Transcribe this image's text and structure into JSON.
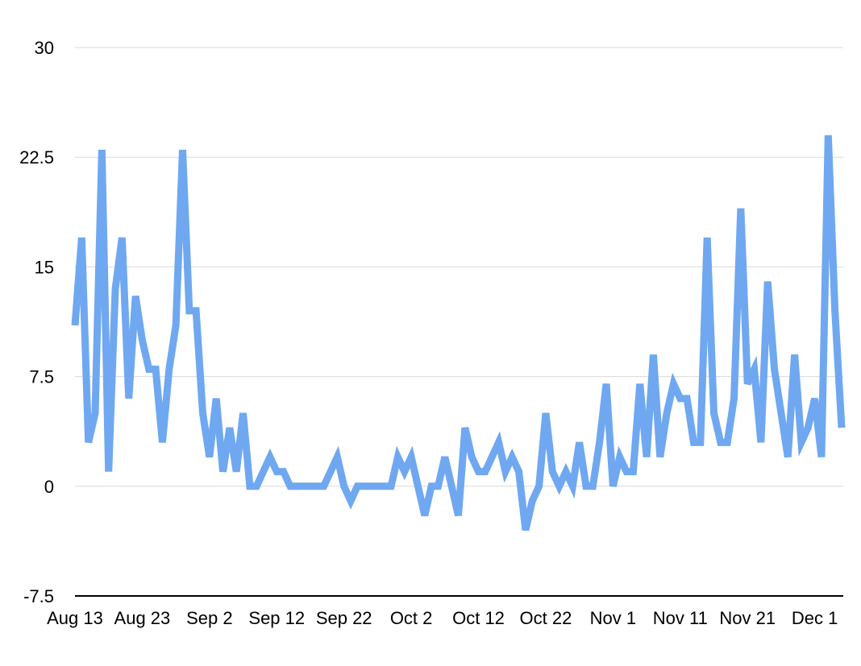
{
  "chart_data": {
    "type": "line",
    "title": "",
    "xlabel": "",
    "ylabel": "",
    "ylim": [
      -7.5,
      30
    ],
    "y_ticks": [
      "-7.5",
      "0",
      "7.5",
      "15",
      "22.5",
      "30"
    ],
    "y_tick_values": [
      -7.5,
      0,
      7.5,
      15,
      22.5,
      30
    ],
    "grid": true,
    "legend": "none",
    "x_range": [
      "Aug 13",
      "Dec 5"
    ],
    "x_tick_labels": [
      {
        "label": "Aug 13",
        "date": "Aug 13"
      },
      {
        "label": "Aug 23",
        "date": "Aug 23"
      },
      {
        "label": "Sep 2",
        "date": "Sep 2"
      },
      {
        "label": "Sep 12",
        "date": "Sep 12"
      },
      {
        "label": "Sep 22",
        "date": "Sep 22"
      },
      {
        "label": "Oct 2",
        "date": "Oct 2"
      },
      {
        "label": "Oct 12",
        "date": "Oct 12"
      },
      {
        "label": "Oct 22",
        "date": "Oct 22"
      },
      {
        "label": "Nov 1",
        "date": "Nov 1"
      },
      {
        "label": "Nov 11",
        "date": "Nov 11"
      },
      {
        "label": "Nov 21",
        "date": "Nov 21"
      },
      {
        "label": "Dec 1",
        "date": "Dec 1"
      }
    ],
    "series": [
      {
        "color": "#6fa8f0",
        "x": [
          "Aug 13",
          "Aug 14",
          "Aug 15",
          "Aug 16",
          "Aug 17",
          "Aug 18",
          "Aug 19",
          "Aug 20",
          "Aug 21",
          "Aug 22",
          "Aug 23",
          "Aug 24",
          "Aug 25",
          "Aug 26",
          "Aug 27",
          "Aug 28",
          "Aug 29",
          "Aug 30",
          "Aug 31",
          "Sep 1",
          "Sep 2",
          "Sep 3",
          "Sep 4",
          "Sep 5",
          "Sep 6",
          "Sep 7",
          "Sep 8",
          "Sep 9",
          "Sep 10",
          "Sep 11",
          "Sep 12",
          "Sep 13",
          "Sep 14",
          "Sep 15",
          "Sep 16",
          "Sep 17",
          "Sep 18",
          "Sep 19",
          "Sep 20",
          "Sep 21",
          "Sep 22",
          "Sep 23",
          "Sep 24",
          "Sep 25",
          "Sep 26",
          "Sep 27",
          "Sep 28",
          "Sep 29",
          "Sep 30",
          "Oct 1",
          "Oct 2",
          "Oct 3",
          "Oct 4",
          "Oct 5",
          "Oct 6",
          "Oct 7",
          "Oct 8",
          "Oct 9",
          "Oct 10",
          "Oct 11",
          "Oct 12",
          "Oct 13",
          "Oct 14",
          "Oct 15",
          "Oct 16",
          "Oct 17",
          "Oct 18",
          "Oct 19",
          "Oct 20",
          "Oct 21",
          "Oct 22",
          "Oct 23",
          "Oct 24",
          "Oct 25",
          "Oct 26",
          "Oct 27",
          "Oct 28",
          "Oct 29",
          "Oct 30",
          "Oct 31",
          "Nov 1",
          "Nov 2",
          "Nov 3",
          "Nov 4",
          "Nov 5",
          "Nov 6",
          "Nov 7",
          "Nov 8",
          "Nov 9",
          "Nov 10",
          "Nov 11",
          "Nov 12",
          "Nov 13",
          "Nov 14",
          "Nov 15",
          "Nov 16",
          "Nov 17",
          "Nov 18",
          "Nov 19",
          "Nov 20",
          "Nov 21",
          "Nov 22",
          "Nov 23",
          "Nov 24",
          "Nov 25",
          "Nov 26",
          "Nov 27",
          "Nov 28",
          "Nov 29",
          "Nov 30",
          "Dec 1",
          "Dec 2",
          "Dec 3",
          "Dec 4",
          "Dec 5"
        ],
        "y": [
          11,
          17,
          3,
          5,
          23,
          1,
          13.5,
          17,
          6,
          13,
          10,
          8,
          8,
          3,
          8,
          11,
          23,
          12,
          12,
          5,
          2,
          6,
          1,
          4,
          1,
          5,
          0,
          0,
          1,
          2,
          1,
          1,
          0,
          0,
          0,
          0,
          0,
          0,
          1,
          2,
          0,
          -1,
          0,
          0,
          0,
          0,
          0,
          0,
          2,
          1,
          2,
          0,
          -2,
          0,
          0,
          2,
          0,
          -2,
          4,
          2,
          1,
          1,
          2,
          3,
          1,
          2,
          1,
          -3,
          -1,
          0,
          5,
          1,
          0,
          1,
          0,
          3,
          0,
          0,
          3,
          7,
          0,
          2,
          1,
          1,
          7,
          2,
          9,
          2,
          5,
          7,
          6,
          6,
          3,
          3,
          17,
          5,
          3,
          3,
          6,
          19,
          7,
          8,
          3,
          14,
          8,
          5,
          2,
          9,
          3,
          4,
          6,
          2,
          24,
          12,
          4
        ]
      }
    ]
  }
}
